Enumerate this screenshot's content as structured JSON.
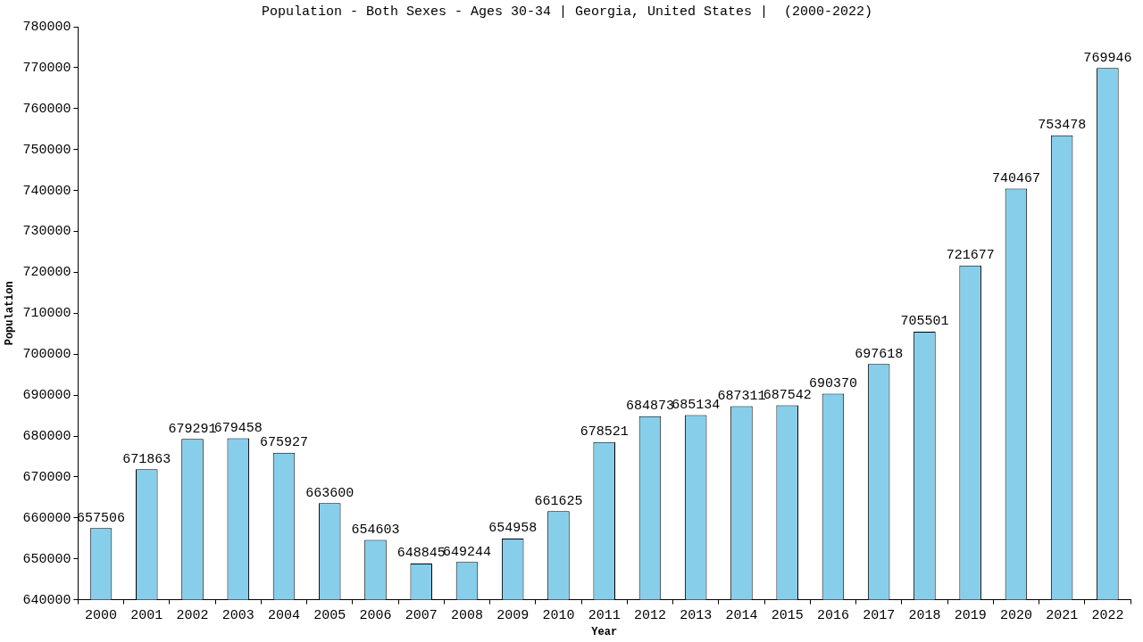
{
  "chart_data": {
    "type": "bar",
    "title": "Population - Both Sexes - Ages 30-34 | Georgia, United States |  (2000-2022)",
    "x_label": "Year",
    "y_label": "Population",
    "categories": [
      "2000",
      "2001",
      "2002",
      "2003",
      "2004",
      "2005",
      "2006",
      "2007",
      "2008",
      "2009",
      "2010",
      "2011",
      "2012",
      "2013",
      "2014",
      "2015",
      "2016",
      "2017",
      "2018",
      "2019",
      "2020",
      "2021",
      "2022"
    ],
    "values": [
      657506,
      671863,
      679291,
      679458,
      675927,
      663600,
      654603,
      648845,
      649244,
      654958,
      661625,
      678521,
      684873,
      685134,
      687311,
      687542,
      690370,
      697618,
      705501,
      721677,
      740467,
      753478,
      769946
    ],
    "color": "#87CEEB",
    "ylim": [
      640000,
      780000
    ],
    "yticks": [
      640000,
      650000,
      660000,
      670000,
      680000,
      690000,
      700000,
      710000,
      720000,
      730000,
      740000,
      750000,
      760000,
      770000,
      780000
    ],
    "grid": false,
    "data_labels": true
  }
}
